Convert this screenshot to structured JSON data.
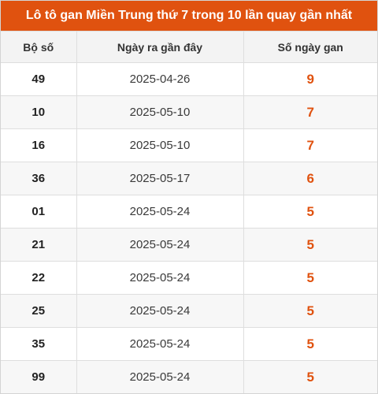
{
  "title": "Lô tô gan Miền Trung thứ 7 trong 10 lần quay gần nhất",
  "colors": {
    "accent": "#e0520f",
    "header_bg": "#f3f3f3"
  },
  "table": {
    "headers": [
      "Bộ số",
      "Ngày ra gần đây",
      "Số ngày gan"
    ],
    "rows": [
      {
        "number": "49",
        "date": "2025-04-26",
        "days": "9"
      },
      {
        "number": "10",
        "date": "2025-05-10",
        "days": "7"
      },
      {
        "number": "16",
        "date": "2025-05-10",
        "days": "7"
      },
      {
        "number": "36",
        "date": "2025-05-17",
        "days": "6"
      },
      {
        "number": "01",
        "date": "2025-05-24",
        "days": "5"
      },
      {
        "number": "21",
        "date": "2025-05-24",
        "days": "5"
      },
      {
        "number": "22",
        "date": "2025-05-24",
        "days": "5"
      },
      {
        "number": "25",
        "date": "2025-05-24",
        "days": "5"
      },
      {
        "number": "35",
        "date": "2025-05-24",
        "days": "5"
      },
      {
        "number": "99",
        "date": "2025-05-24",
        "days": "5"
      }
    ]
  }
}
